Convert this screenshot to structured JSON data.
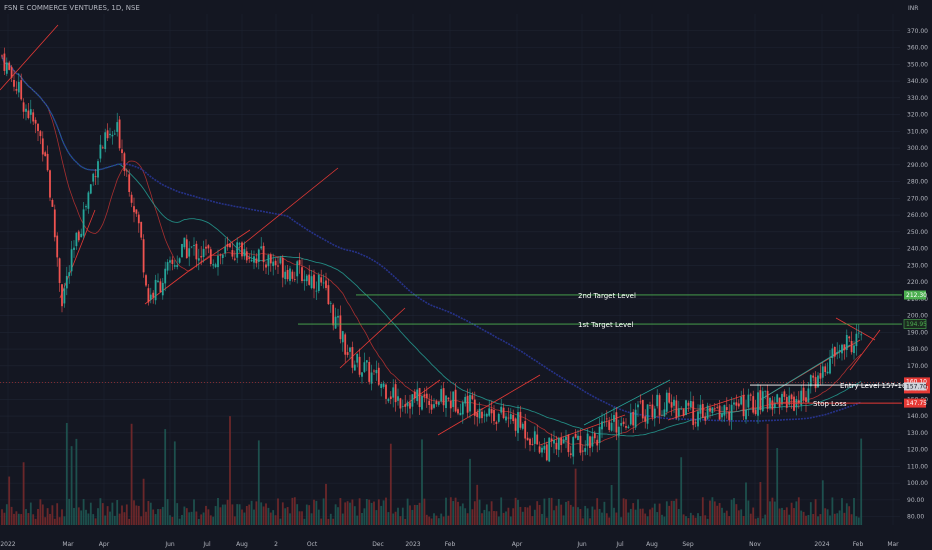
{
  "header": {
    "title": "FSN E COMMERCE VENTURES, 1D, NSE",
    "currency": "INR"
  },
  "colors": {
    "bg": "#141722",
    "up": "#26a69a",
    "down": "#ef5350",
    "grid": "#1f2433",
    "target": "#4caf50",
    "stop": "#e53935",
    "text": "#b2b5be",
    "white": "#d1d4dc"
  },
  "annotations": {
    "target2": {
      "label": "2nd Target Level",
      "value": 212.3,
      "tag": "212.30"
    },
    "target1": {
      "label": "1st Target Level",
      "value": 194.95,
      "tag": "194.95"
    },
    "entry": {
      "label": "Entry Level  157-160",
      "value": 158.5
    },
    "stop": {
      "label": "Stop Loss",
      "value": 147.75,
      "tag": "147.75"
    },
    "last_price": {
      "value": 160.1,
      "tag": "160.10",
      "sub": "17:00:57"
    },
    "ref_price": {
      "value": 157.7,
      "tag": "157.70"
    }
  },
  "chart_data": {
    "type": "candlestick",
    "title": "FSN E COMMERCE VENTURES, 1D, NSE",
    "ylim": [
      75,
      380
    ],
    "yticks": [
      80,
      90,
      100,
      110,
      120,
      130,
      140,
      150,
      160,
      170,
      180,
      190,
      200,
      210,
      220,
      230,
      240,
      250,
      260,
      270,
      280,
      290,
      300,
      310,
      320,
      330,
      340,
      350,
      360,
      370
    ],
    "xticks": [
      "2022",
      "Mar",
      "Apr",
      "Jun",
      "Jul",
      "Aug",
      "2",
      "Oct",
      "Dec",
      "2023",
      "Feb",
      "Apr",
      "Jun",
      "Jul",
      "Aug",
      "Sep",
      "Nov",
      "2024",
      "Feb",
      "Mar"
    ],
    "price_path": [
      [
        "2022-02",
        355
      ],
      [
        "2022-03",
        300
      ],
      [
        "2022-03b",
        210
      ],
      [
        "2022-04",
        300
      ],
      [
        "2022-04b",
        310
      ],
      [
        "2022-05",
        250
      ],
      [
        "2022-05b",
        210
      ],
      [
        "2022-06",
        240
      ],
      [
        "2022-07",
        235
      ],
      [
        "2022-08",
        240
      ],
      [
        "2022-09",
        230
      ],
      [
        "2022-10",
        220
      ],
      [
        "2022-11",
        175
      ],
      [
        "2022-12",
        150
      ],
      [
        "2023-01",
        150
      ],
      [
        "2023-02",
        148
      ],
      [
        "2023-03",
        135
      ],
      [
        "2023-04",
        120
      ],
      [
        "2023-05",
        125
      ],
      [
        "2023-06",
        140
      ],
      [
        "2023-07",
        148
      ],
      [
        "2023-08",
        140
      ],
      [
        "2023-09",
        145
      ],
      [
        "2023-10",
        150
      ],
      [
        "2023-11",
        150
      ],
      [
        "2023-12",
        180
      ],
      [
        "2024-01",
        190
      ],
      [
        "2024-01b",
        165
      ],
      [
        "2024-02",
        160
      ]
    ]
  }
}
